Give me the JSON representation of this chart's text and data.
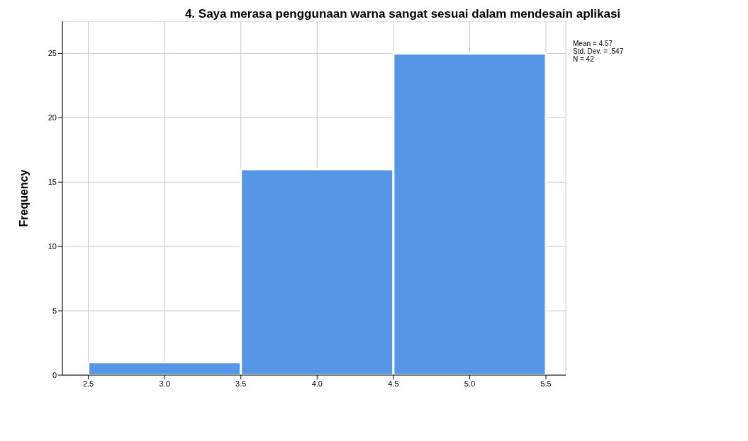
{
  "chart_data": {
    "type": "histogram",
    "title": "4. Saya merasa penggunaan warna sangat sesuai dalam mendesain aplikasi",
    "ylabel": "Frequency",
    "bins": [
      2.5,
      3.5,
      4.5,
      5.5
    ],
    "values": [
      1,
      16,
      25
    ],
    "color": "#5596e6",
    "xlim": [
      2.33,
      5.63
    ],
    "xticks": [
      2.5,
      {
        "value": 3,
        "label": "3.0"
      },
      3.5,
      {
        "value": 4,
        "label": "4.0"
      },
      4.5,
      {
        "value": 5,
        "label": "5.0"
      },
      5.5
    ],
    "ylim": [
      0,
      27.5
    ],
    "yticks": [
      0,
      5,
      10,
      15,
      20,
      25
    ],
    "grid": true,
    "annotations": [
      "Mean = 4.57",
      "Std. Dev. = .547",
      "N = 42"
    ]
  }
}
